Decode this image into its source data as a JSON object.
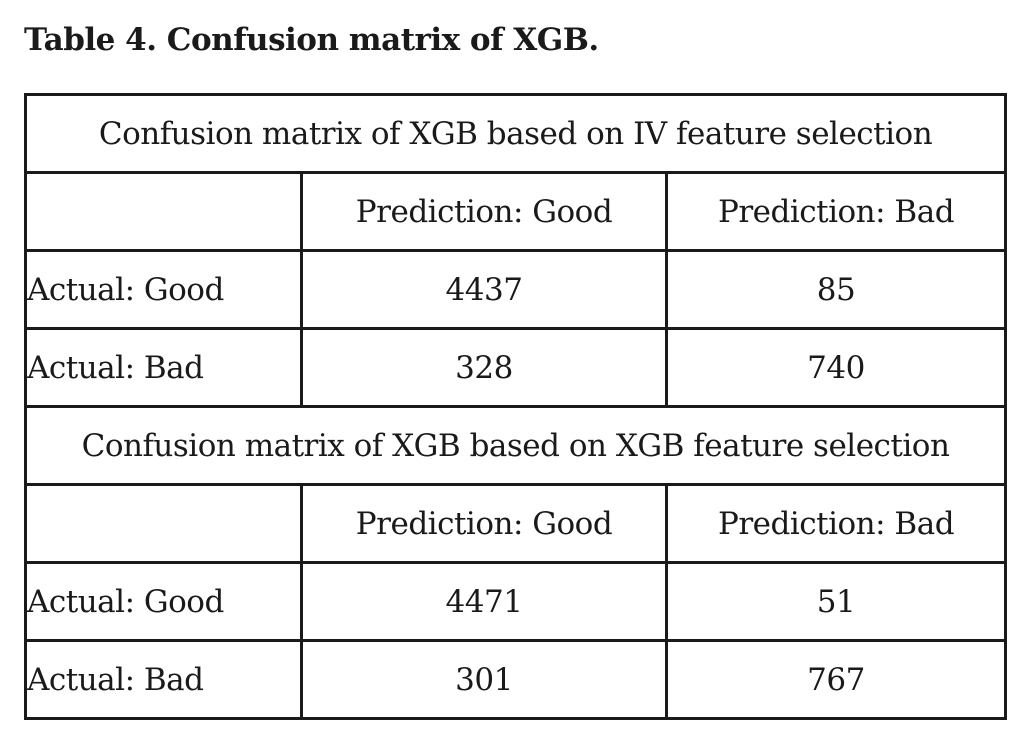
{
  "caption": "Table 4. Confusion matrix of XGB.",
  "sections": [
    {
      "title": "Confusion matrix of XGB based on IV feature selection",
      "columns": [
        "Prediction: Good",
        "Prediction: Bad"
      ],
      "rows": [
        {
          "label": "Actual: Good",
          "values": [
            "4437",
            "85"
          ]
        },
        {
          "label": "Actual: Bad",
          "values": [
            "328",
            "740"
          ]
        }
      ]
    },
    {
      "title": "Confusion matrix of XGB based on XGB feature selection",
      "columns": [
        "Prediction: Good",
        "Prediction: Bad"
      ],
      "rows": [
        {
          "label": "Actual: Good",
          "values": [
            "4471",
            "51"
          ]
        },
        {
          "label": "Actual: Bad",
          "values": [
            "301",
            "767"
          ]
        }
      ]
    }
  ]
}
